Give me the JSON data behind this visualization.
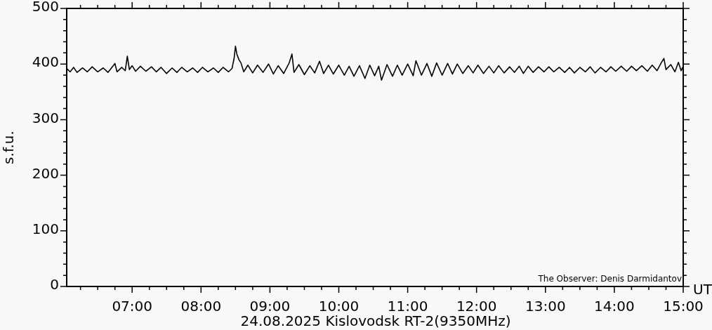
{
  "chart_data": {
    "type": "line",
    "ylabel": "s.f.u.",
    "xlabel": "UT",
    "color": "#000000",
    "annotations": [
      "24.08.2025 Kislovodsk RT-2(9350MHz)",
      "The Observer: Denis Darmidantov"
    ],
    "xlim": [
      6.05,
      15
    ],
    "ylim": [
      0,
      500
    ],
    "xticks": [
      {
        "value": 6.25,
        "label": null
      },
      {
        "value": 6.5,
        "label": null
      },
      {
        "value": 6.75,
        "label": null
      },
      {
        "value": 7,
        "label": "07:00"
      },
      {
        "value": 7.25,
        "label": null
      },
      {
        "value": 7.5,
        "label": null
      },
      {
        "value": 7.75,
        "label": null
      },
      {
        "value": 8,
        "label": "08:00"
      },
      {
        "value": 8.25,
        "label": null
      },
      {
        "value": 8.5,
        "label": null
      },
      {
        "value": 8.75,
        "label": null
      },
      {
        "value": 9,
        "label": "09:00"
      },
      {
        "value": 9.25,
        "label": null
      },
      {
        "value": 9.5,
        "label": null
      },
      {
        "value": 9.75,
        "label": null
      },
      {
        "value": 10,
        "label": "10:00"
      },
      {
        "value": 10.25,
        "label": null
      },
      {
        "value": 10.5,
        "label": null
      },
      {
        "value": 10.75,
        "label": null
      },
      {
        "value": 11,
        "label": "11:00"
      },
      {
        "value": 11.25,
        "label": null
      },
      {
        "value": 11.5,
        "label": null
      },
      {
        "value": 11.75,
        "label": null
      },
      {
        "value": 12,
        "label": "12:00"
      },
      {
        "value": 12.25,
        "label": null
      },
      {
        "value": 12.5,
        "label": null
      },
      {
        "value": 12.75,
        "label": null
      },
      {
        "value": 13,
        "label": "13:00"
      },
      {
        "value": 13.25,
        "label": null
      },
      {
        "value": 13.5,
        "label": null
      },
      {
        "value": 13.75,
        "label": null
      },
      {
        "value": 14,
        "label": "14:00"
      },
      {
        "value": 14.25,
        "label": null
      },
      {
        "value": 14.5,
        "label": null
      },
      {
        "value": 14.75,
        "label": null
      },
      {
        "value": 15,
        "label": "15:00"
      }
    ],
    "yticks": [
      0,
      {
        "value": 20,
        "label": null
      },
      {
        "value": 40,
        "label": null
      },
      {
        "value": 60,
        "label": null
      },
      {
        "value": 80,
        "label": null
      },
      100,
      {
        "value": 120,
        "label": null
      },
      {
        "value": 140,
        "label": null
      },
      {
        "value": 160,
        "label": null
      },
      {
        "value": 180,
        "label": null
      },
      200,
      {
        "value": 220,
        "label": null
      },
      {
        "value": 240,
        "label": null
      },
      {
        "value": 260,
        "label": null
      },
      {
        "value": 280,
        "label": null
      },
      300,
      {
        "value": 320,
        "label": null
      },
      {
        "value": 340,
        "label": null
      },
      {
        "value": 360,
        "label": null
      },
      {
        "value": 380,
        "label": null
      },
      400,
      {
        "value": 420,
        "label": null
      },
      {
        "value": 440,
        "label": null
      },
      {
        "value": 460,
        "label": null
      },
      {
        "value": 480,
        "label": null
      },
      500
    ],
    "x": [
      6.05,
      6.1,
      6.15,
      6.2,
      6.28,
      6.35,
      6.42,
      6.5,
      6.58,
      6.65,
      6.72,
      6.75,
      6.78,
      6.85,
      6.9,
      6.93,
      6.96,
      7.0,
      7.05,
      7.12,
      7.2,
      7.28,
      7.35,
      7.42,
      7.5,
      7.58,
      7.65,
      7.72,
      7.8,
      7.88,
      7.95,
      8.02,
      8.1,
      8.18,
      8.25,
      8.32,
      8.4,
      8.45,
      8.48,
      8.5,
      8.52,
      8.55,
      8.58,
      8.62,
      8.68,
      8.75,
      8.82,
      8.9,
      8.98,
      9.05,
      9.12,
      9.2,
      9.28,
      9.32,
      9.35,
      9.42,
      9.5,
      9.58,
      9.65,
      9.72,
      9.78,
      9.85,
      9.92,
      10.0,
      10.08,
      10.15,
      10.22,
      10.3,
      10.38,
      10.45,
      10.52,
      10.58,
      10.62,
      10.7,
      10.78,
      10.85,
      10.92,
      11.0,
      11.08,
      11.12,
      11.2,
      11.28,
      11.35,
      11.42,
      11.5,
      11.58,
      11.65,
      11.72,
      11.8,
      11.88,
      11.95,
      12.02,
      12.1,
      12.18,
      12.25,
      12.32,
      12.4,
      12.48,
      12.55,
      12.62,
      12.68,
      12.75,
      12.82,
      12.9,
      12.98,
      13.05,
      13.12,
      13.2,
      13.28,
      13.35,
      13.42,
      13.5,
      13.58,
      13.65,
      13.72,
      13.8,
      13.88,
      13.95,
      14.02,
      14.1,
      14.18,
      14.25,
      14.32,
      14.4,
      14.48,
      14.55,
      14.62,
      14.68,
      14.72,
      14.75,
      14.82,
      14.88,
      14.93,
      14.97,
      15.0
    ],
    "values": [
      392,
      386,
      394,
      385,
      393,
      386,
      395,
      386,
      393,
      385,
      396,
      401,
      386,
      394,
      388,
      414,
      390,
      397,
      387,
      396,
      387,
      395,
      386,
      394,
      383,
      393,
      385,
      394,
      386,
      393,
      385,
      394,
      386,
      393,
      385,
      394,
      386,
      392,
      410,
      432,
      418,
      408,
      402,
      386,
      398,
      384,
      398,
      385,
      400,
      382,
      397,
      383,
      402,
      418,
      385,
      399,
      381,
      397,
      384,
      405,
      383,
      398,
      382,
      398,
      380,
      396,
      378,
      397,
      374,
      398,
      379,
      396,
      371,
      399,
      378,
      398,
      380,
      400,
      379,
      406,
      380,
      401,
      378,
      402,
      380,
      401,
      382,
      400,
      383,
      397,
      384,
      398,
      383,
      396,
      384,
      397,
      384,
      395,
      385,
      396,
      383,
      396,
      385,
      395,
      386,
      395,
      386,
      394,
      385,
      394,
      384,
      394,
      386,
      395,
      384,
      394,
      386,
      395,
      387,
      396,
      387,
      396,
      388,
      397,
      387,
      398,
      388,
      402,
      410,
      390,
      399,
      386,
      403,
      388,
      396
    ]
  }
}
